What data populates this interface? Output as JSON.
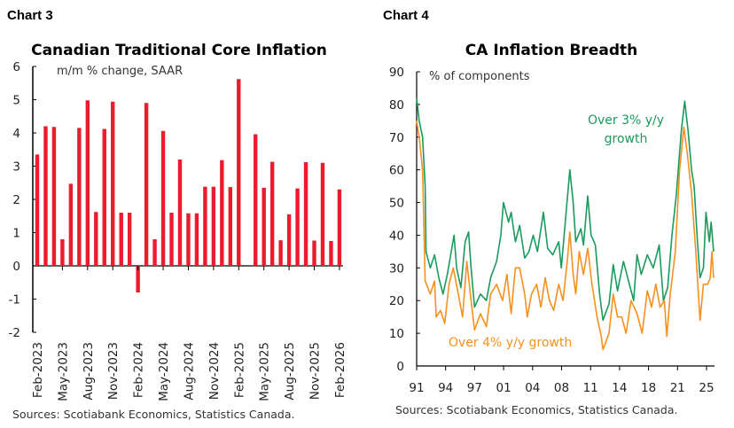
{
  "chart_data": [
    {
      "label": "Chart 3",
      "type": "bar",
      "title": "Canadian Traditional Core Inflation",
      "subtitle": "m/m % change, SAAR",
      "source": "Sources: Scotiabank Economics, Statistics Canada.",
      "color": "#ec1c2e",
      "ylim": [
        -2,
        6
      ],
      "yticks": [
        -2,
        -1,
        0,
        1,
        2,
        3,
        4,
        5,
        6
      ],
      "categories": [
        "Feb-2023",
        "Mar-2023",
        "Apr-2023",
        "May-2023",
        "Jun-2023",
        "Jul-2023",
        "Aug-2023",
        "Sep-2023",
        "Oct-2023",
        "Nov-2023",
        "Dec-2023",
        "Jan-2024",
        "Feb-2024",
        "Mar-2024",
        "Apr-2024",
        "May-2024",
        "Jun-2024",
        "Jul-2024",
        "Aug-2024",
        "Sep-2024",
        "Oct-2024",
        "Nov-2024",
        "Dec-2024",
        "Jan-2025",
        "Feb-2025",
        "Mar-2025",
        "Apr-2025",
        "May-2025",
        "Jun-2025",
        "Jul-2025",
        "Aug-2025",
        "Sep-2025",
        "Oct-2025",
        "Nov-2025",
        "Dec-2025",
        "Jan-2026",
        "Feb-2026"
      ],
      "tick_labels": [
        "Feb-2023",
        "May-2023",
        "Aug-2023",
        "Nov-2023",
        "Feb-2024",
        "May-2024",
        "Aug-2024",
        "Nov-2024",
        "Feb-2025",
        "May-2025",
        "Aug-2025",
        "Nov-2025",
        "Feb-2026"
      ],
      "values": [
        3.35,
        4.2,
        4.18,
        0.8,
        2.47,
        4.15,
        4.98,
        1.62,
        4.12,
        4.94,
        1.6,
        1.6,
        -0.8,
        4.9,
        0.8,
        4.06,
        1.6,
        3.2,
        1.58,
        1.58,
        2.38,
        2.38,
        3.18,
        2.37,
        5.62,
        0,
        3.96,
        2.35,
        3.13,
        0.77,
        1.55,
        2.33,
        3.12,
        0.76,
        3.1,
        0.75,
        2.3
      ]
    },
    {
      "label": "Chart 4",
      "type": "line",
      "title": "CA Inflation Breadth",
      "subtitle": "% of components",
      "source": "Sources: Scotiabank Economics, Statistics Canada.",
      "ylim": [
        0,
        90
      ],
      "yticks": [
        0,
        10,
        20,
        30,
        40,
        50,
        60,
        70,
        80,
        90
      ],
      "xlim": [
        1991,
        2026
      ],
      "xtick_labels": [
        "91",
        "94",
        "97",
        "01",
        "04",
        "08",
        "11",
        "14",
        "18",
        "21",
        "25"
      ],
      "series": [
        {
          "name": "Over 3% y/y growth",
          "label_lines": [
            "Over 3% y/y",
            "growth"
          ],
          "color": "#1a9a5c",
          "x": [
            1991.0,
            1991.3,
            1991.7,
            1992.0,
            1992.1,
            1992.6,
            1993.1,
            1993.6,
            1994.1,
            1994.6,
            1995.2,
            1995.4,
            1995.7,
            1996.2,
            1996.7,
            1997.1,
            1997.4,
            1997.8,
            1998.5,
            1999.2,
            1999.7,
            2000.4,
            2000.9,
            2001.2,
            2001.8,
            2002.1,
            2002.6,
            2003.1,
            2003.7,
            2004.2,
            2004.7,
            2005.2,
            2005.9,
            2006.4,
            2007.0,
            2007.7,
            2008.0,
            2008.5,
            2009.0,
            2009.4,
            2009.7,
            2010.3,
            2010.6,
            2011.1,
            2011.5,
            2012.0,
            2012.5,
            2012.9,
            2013.6,
            2014.1,
            2014.6,
            2015.3,
            2016.0,
            2016.5,
            2016.9,
            2017.4,
            2018.1,
            2018.8,
            2019.5,
            2020.0,
            2020.5,
            2021.0,
            2021.5,
            2022.1,
            2022.5,
            2022.9,
            2023.3,
            2023.6,
            2024.0,
            2024.3,
            2024.7,
            2025.0,
            2025.4,
            2025.6,
            2025.9
          ],
          "y": [
            82,
            75,
            70,
            55,
            35,
            30,
            34,
            27,
            22,
            28,
            37,
            40,
            30,
            24,
            38,
            41,
            30,
            18,
            22,
            20,
            27,
            32,
            40,
            50,
            44,
            47,
            38,
            43,
            33,
            35,
            40,
            35,
            47,
            36,
            34,
            38,
            30,
            45,
            60,
            50,
            38,
            42,
            37,
            52,
            40,
            37,
            22,
            14,
            19,
            31,
            23,
            32,
            25,
            20,
            34,
            28,
            34,
            30,
            37,
            20,
            24,
            40,
            52,
            72,
            81,
            72,
            60,
            55,
            38,
            27,
            30,
            47,
            38,
            44,
            35
          ]
        },
        {
          "name": "Over 4% y/y growth",
          "label_lines": [
            "Over 4% y/y growth"
          ],
          "color": "#f7901e",
          "x": [
            1991.0,
            1991.3,
            1991.7,
            1992.0,
            1992.6,
            1993.1,
            1993.3,
            1993.8,
            1994.3,
            1994.8,
            1995.3,
            1995.9,
            1996.4,
            1996.9,
            1997.4,
            1997.8,
            1998.5,
            1999.2,
            1999.7,
            2000.4,
            2001.1,
            2001.6,
            2002.1,
            2002.6,
            2003.1,
            2003.7,
            2004.0,
            2004.5,
            2005.1,
            2005.6,
            2006.1,
            2006.6,
            2007.1,
            2007.7,
            2008.2,
            2008.7,
            2009.0,
            2009.4,
            2009.7,
            2010.1,
            2010.6,
            2011.1,
            2011.6,
            2012.2,
            2012.7,
            2012.9,
            2013.6,
            2014.1,
            2014.6,
            2015.1,
            2015.6,
            2016.2,
            2016.9,
            2017.5,
            2018.1,
            2018.6,
            2019.1,
            2019.6,
            2020.1,
            2020.4,
            2020.8,
            2021.4,
            2021.9,
            2022.4,
            2022.8,
            2023.3,
            2023.8,
            2024.3,
            2024.7,
            2025.2,
            2025.5,
            2025.7,
            2025.9
          ],
          "y": [
            75,
            70,
            60,
            26,
            22,
            26,
            15,
            17,
            13,
            25,
            30,
            22,
            15,
            32,
            20,
            11,
            16,
            12,
            22,
            25,
            20,
            28,
            16,
            30,
            30,
            22,
            15,
            22,
            25,
            18,
            27,
            20,
            17,
            25,
            20,
            32,
            41,
            28,
            22,
            35,
            28,
            36,
            25,
            15,
            9,
            5,
            10,
            22,
            15,
            15,
            10,
            20,
            16,
            10,
            23,
            18,
            25,
            18,
            20,
            9,
            22,
            35,
            60,
            73,
            65,
            53,
            35,
            14,
            25,
            25,
            27,
            35,
            27
          ]
        }
      ]
    }
  ]
}
